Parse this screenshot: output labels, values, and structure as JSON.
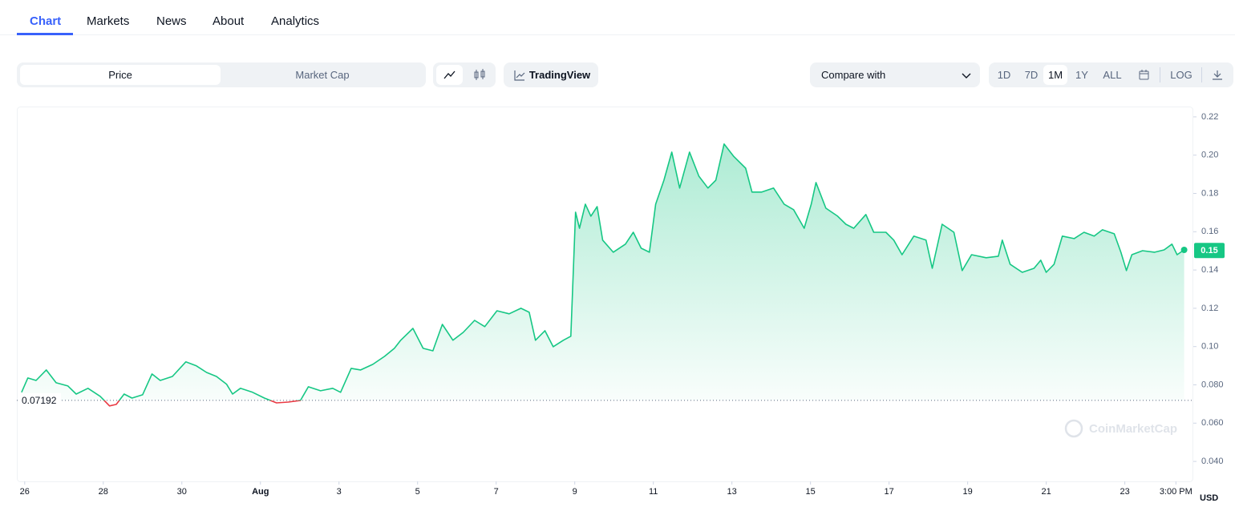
{
  "nav": {
    "tabs": [
      "Chart",
      "Markets",
      "News",
      "About",
      "Analytics"
    ],
    "active": 0
  },
  "toolbar": {
    "toggle": [
      "Price",
      "Market Cap"
    ],
    "tradingview": "TradingView",
    "compare": "Compare with",
    "ranges": [
      "1D",
      "7D",
      "1M",
      "1Y",
      "ALL"
    ],
    "active_range": 2,
    "log": "LOG"
  },
  "chart_data": {
    "type": "line",
    "watermark": "CoinMarketCap",
    "y_unit": "USD",
    "up_color": "#16c784",
    "down_color": "#ea3943",
    "baseline": 0.07192,
    "current_price": 0.15,
    "xlim": [
      -0.2,
      29.6
    ],
    "ylim": [
      0.03,
      0.2254
    ],
    "xticks": [
      {
        "value": 0,
        "label": "26"
      },
      {
        "value": 2,
        "label": "28"
      },
      {
        "value": 4,
        "label": "30"
      },
      {
        "value": 6,
        "label": "Aug"
      },
      {
        "value": 8,
        "label": "3"
      },
      {
        "value": 10,
        "label": "5"
      },
      {
        "value": 12,
        "label": "7"
      },
      {
        "value": 14,
        "label": "9"
      },
      {
        "value": 16,
        "label": "11"
      },
      {
        "value": 18,
        "label": "13"
      },
      {
        "value": 20,
        "label": "15"
      },
      {
        "value": 22,
        "label": "17"
      },
      {
        "value": 24,
        "label": "19"
      },
      {
        "value": 26,
        "label": "21"
      },
      {
        "value": 28,
        "label": "23"
      },
      {
        "value": 29.3,
        "label": "3:00 PM"
      }
    ],
    "yticks": [
      0.22,
      {
        "value": 0.2,
        "label": "0.20"
      },
      0.18,
      0.16,
      0.14,
      0.12,
      {
        "value": 0.1,
        "label": "0.10"
      },
      {
        "value": 0.08,
        "label": "0.080"
      },
      {
        "value": 0.06,
        "label": "0.060"
      },
      {
        "value": 0.04,
        "label": "0.040"
      }
    ],
    "x": [
      -0.08,
      0.08,
      0.29,
      0.55,
      0.8,
      1.1,
      1.31,
      1.61,
      1.92,
      2.16,
      2.33,
      2.53,
      2.73,
      3.0,
      3.24,
      3.45,
      3.76,
      4.1,
      4.37,
      4.63,
      4.88,
      5.14,
      5.29,
      5.49,
      5.8,
      6.1,
      6.41,
      6.71,
      7.02,
      7.22,
      7.53,
      7.84,
      8.04,
      8.31,
      8.55,
      8.86,
      9.16,
      9.41,
      9.57,
      9.88,
      10.14,
      10.39,
      10.63,
      10.9,
      11.16,
      11.45,
      11.71,
      12.02,
      12.33,
      12.63,
      12.84,
      13.0,
      13.24,
      13.45,
      13.71,
      13.9,
      14.02,
      14.12,
      14.27,
      14.41,
      14.57,
      14.71,
      14.98,
      15.29,
      15.49,
      15.69,
      15.9,
      16.06,
      16.27,
      16.47,
      16.67,
      16.92,
      17.16,
      17.39,
      17.59,
      17.8,
      18.04,
      18.35,
      18.51,
      18.76,
      19.06,
      19.33,
      19.57,
      19.84,
      20.02,
      20.14,
      20.39,
      20.69,
      20.9,
      21.1,
      21.41,
      21.61,
      21.92,
      22.12,
      22.33,
      22.63,
      22.94,
      23.1,
      23.35,
      23.65,
      23.86,
      24.1,
      24.47,
      24.78,
      24.88,
      25.08,
      25.39,
      25.69,
      25.86,
      26.0,
      26.2,
      26.41,
      26.71,
      26.96,
      27.22,
      27.43,
      27.73,
      27.9,
      28.04,
      28.18,
      28.45,
      28.76,
      29.0,
      29.2,
      29.33,
      29.51
    ],
    "values": [
      0.0761,
      0.0836,
      0.0823,
      0.0878,
      0.0811,
      0.0794,
      0.0752,
      0.0782,
      0.074,
      0.069,
      0.0698,
      0.0752,
      0.0731,
      0.0748,
      0.0857,
      0.0823,
      0.0844,
      0.092,
      0.0899,
      0.0865,
      0.0844,
      0.0803,
      0.0752,
      0.0782,
      0.0761,
      0.0731,
      0.0706,
      0.071,
      0.0719,
      0.079,
      0.0769,
      0.0782,
      0.0761,
      0.0886,
      0.0878,
      0.0907,
      0.0949,
      0.0991,
      0.1033,
      0.1095,
      0.0991,
      0.0978,
      0.1116,
      0.1033,
      0.1074,
      0.1137,
      0.1104,
      0.1187,
      0.1171,
      0.12,
      0.1179,
      0.1033,
      0.1083,
      0.0999,
      0.1033,
      0.1054,
      0.1702,
      0.1618,
      0.1744,
      0.1681,
      0.1731,
      0.1556,
      0.1493,
      0.1535,
      0.1597,
      0.1514,
      0.1493,
      0.1744,
      0.1869,
      0.2016,
      0.1828,
      0.2016,
      0.189,
      0.1828,
      0.1869,
      0.2058,
      0.1995,
      0.1932,
      0.1807,
      0.1807,
      0.1828,
      0.1744,
      0.1715,
      0.1618,
      0.1744,
      0.1857,
      0.1723,
      0.1681,
      0.1639,
      0.1618,
      0.169,
      0.1597,
      0.1597,
      0.1556,
      0.148,
      0.1577,
      0.1556,
      0.1409,
      0.1639,
      0.1597,
      0.1397,
      0.148,
      0.1464,
      0.1472,
      0.1556,
      0.143,
      0.1388,
      0.1409,
      0.1451,
      0.1388,
      0.143,
      0.1577,
      0.1564,
      0.1597,
      0.1577,
      0.161,
      0.1589,
      0.1493,
      0.1397,
      0.148,
      0.1501,
      0.1493,
      0.1505,
      0.1535,
      0.148,
      0.1505
    ]
  }
}
